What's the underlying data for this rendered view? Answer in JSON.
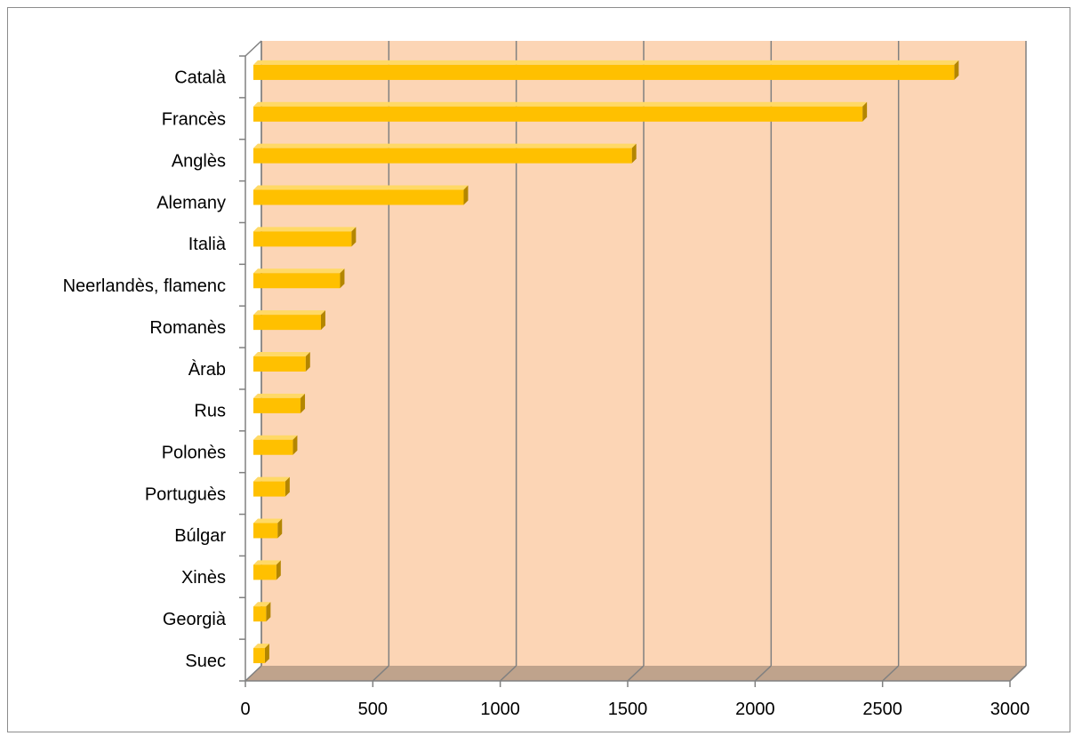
{
  "chart_data": {
    "type": "bar",
    "orientation": "horizontal",
    "style": "3d",
    "title": "",
    "xlabel": "",
    "ylabel": "",
    "categories": [
      "Català",
      "Francès",
      "Anglès",
      "Alemany",
      "Italià",
      "Neerlandès, flamenc",
      "Romanès",
      "Àrab",
      "Rus",
      "Polonès",
      "Portuguès",
      "Búlgar",
      "Xinès",
      "Georgià",
      "Suec"
    ],
    "values": [
      2750,
      2390,
      1485,
      825,
      385,
      340,
      265,
      205,
      185,
      155,
      125,
      95,
      90,
      50,
      45
    ],
    "xlim": [
      0,
      3000
    ],
    "xticks": [
      0,
      500,
      1000,
      1500,
      2000,
      2500,
      3000
    ],
    "xtick_labels": [
      "0",
      "500",
      "1000",
      "1500",
      "2000",
      "2500",
      "3000"
    ],
    "grid": "vertical",
    "legend": "none",
    "colors": {
      "bar_front": "#ffc000",
      "bar_top": "#ffd966",
      "bar_side": "#b38600",
      "plot_background": "#fcd5b5",
      "floor": "#bfa38c",
      "gridline": "#808080",
      "axis": "#808080"
    }
  }
}
